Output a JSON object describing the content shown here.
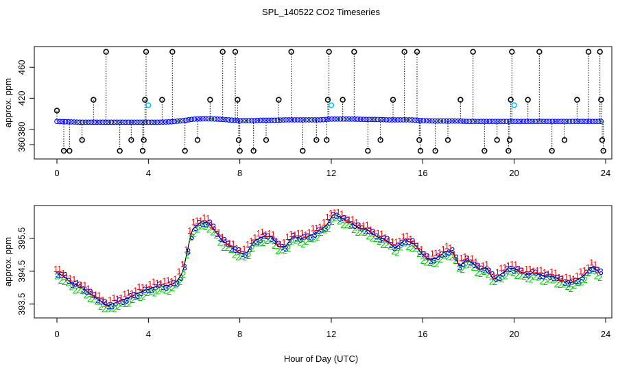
{
  "chart_data": [
    {
      "type": "scatter",
      "title": "SPL_140522  CO2 Timeseries",
      "xlabel": "",
      "ylabel": "approx. ppm",
      "xlim": [
        0,
        24
      ],
      "ylim": [
        345,
        485
      ],
      "x_ticks": [
        0,
        4,
        8,
        12,
        16,
        20,
        24
      ],
      "y_ticks": [
        360,
        380,
        420,
        460
      ],
      "baseline": [
        [
          0,
          390
        ],
        [
          0.5,
          389.5
        ],
        [
          1,
          389
        ],
        [
          1.5,
          389
        ],
        [
          2,
          389
        ],
        [
          2.5,
          389
        ],
        [
          3,
          389
        ],
        [
          3.5,
          389
        ],
        [
          4,
          389
        ],
        [
          4.5,
          389
        ],
        [
          5,
          389.5
        ],
        [
          5.5,
          391
        ],
        [
          6,
          393
        ],
        [
          6.5,
          393.5
        ],
        [
          7,
          393
        ],
        [
          7.5,
          392
        ],
        [
          8,
          391
        ],
        [
          8.5,
          391
        ],
        [
          9,
          391.5
        ],
        [
          9.5,
          391.5
        ],
        [
          10,
          392
        ],
        [
          10.5,
          392
        ],
        [
          11,
          392
        ],
        [
          11.5,
          392
        ],
        [
          12,
          393
        ],
        [
          12.5,
          393
        ],
        [
          13,
          393
        ],
        [
          13.5,
          392.5
        ],
        [
          14,
          392.5
        ],
        [
          14.5,
          392
        ],
        [
          15,
          392
        ],
        [
          15.5,
          392
        ],
        [
          16,
          391
        ],
        [
          16.5,
          390.5
        ],
        [
          17,
          390.5
        ],
        [
          17.5,
          390.5
        ],
        [
          18,
          390
        ],
        [
          18.5,
          390
        ],
        [
          19,
          390
        ],
        [
          19.5,
          390
        ],
        [
          20,
          390
        ],
        [
          20.5,
          390
        ],
        [
          21,
          390
        ],
        [
          21.5,
          390
        ],
        [
          22,
          390
        ],
        [
          22.5,
          390
        ],
        [
          23,
          390
        ],
        [
          23.5,
          390
        ],
        [
          23.8,
          390
        ]
      ],
      "outliers": [
        {
          "x": 0.0,
          "y": 404
        },
        {
          "x": 0.3,
          "y": 352
        },
        {
          "x": 0.55,
          "y": 352
        },
        {
          "x": 1.1,
          "y": 366
        },
        {
          "x": 1.6,
          "y": 418
        },
        {
          "x": 2.15,
          "y": 480
        },
        {
          "x": 2.75,
          "y": 352
        },
        {
          "x": 3.25,
          "y": 366
        },
        {
          "x": 3.75,
          "y": 352
        },
        {
          "x": 3.8,
          "y": 366
        },
        {
          "x": 3.85,
          "y": 418
        },
        {
          "x": 3.9,
          "y": 480
        },
        {
          "x": 4.6,
          "y": 418
        },
        {
          "x": 5.05,
          "y": 480
        },
        {
          "x": 5.6,
          "y": 352
        },
        {
          "x": 6.15,
          "y": 366
        },
        {
          "x": 6.7,
          "y": 418
        },
        {
          "x": 7.25,
          "y": 480
        },
        {
          "x": 7.8,
          "y": 480
        },
        {
          "x": 7.9,
          "y": 418
        },
        {
          "x": 7.95,
          "y": 366
        },
        {
          "x": 8.0,
          "y": 352
        },
        {
          "x": 8.6,
          "y": 352
        },
        {
          "x": 9.15,
          "y": 366
        },
        {
          "x": 9.7,
          "y": 418
        },
        {
          "x": 10.25,
          "y": 480
        },
        {
          "x": 10.75,
          "y": 352
        },
        {
          "x": 11.35,
          "y": 366
        },
        {
          "x": 11.8,
          "y": 366
        },
        {
          "x": 11.85,
          "y": 418
        },
        {
          "x": 11.9,
          "y": 480
        },
        {
          "x": 12.5,
          "y": 418
        },
        {
          "x": 13.0,
          "y": 480
        },
        {
          "x": 13.6,
          "y": 352
        },
        {
          "x": 14.15,
          "y": 366
        },
        {
          "x": 14.7,
          "y": 418
        },
        {
          "x": 15.2,
          "y": 480
        },
        {
          "x": 15.75,
          "y": 480
        },
        {
          "x": 15.85,
          "y": 366
        },
        {
          "x": 15.9,
          "y": 352
        },
        {
          "x": 16.55,
          "y": 352
        },
        {
          "x": 17.1,
          "y": 366
        },
        {
          "x": 17.65,
          "y": 418
        },
        {
          "x": 18.2,
          "y": 480
        },
        {
          "x": 18.7,
          "y": 352
        },
        {
          "x": 19.25,
          "y": 366
        },
        {
          "x": 19.75,
          "y": 352
        },
        {
          "x": 19.8,
          "y": 366
        },
        {
          "x": 19.85,
          "y": 418
        },
        {
          "x": 19.9,
          "y": 480
        },
        {
          "x": 20.6,
          "y": 418
        },
        {
          "x": 21.1,
          "y": 480
        },
        {
          "x": 21.65,
          "y": 352
        },
        {
          "x": 22.2,
          "y": 366
        },
        {
          "x": 22.75,
          "y": 418
        },
        {
          "x": 23.25,
          "y": 480
        },
        {
          "x": 23.75,
          "y": 480
        },
        {
          "x": 23.8,
          "y": 418
        },
        {
          "x": 23.85,
          "y": 366
        },
        {
          "x": 23.9,
          "y": 352
        }
      ],
      "highlights": [
        {
          "x": 4.0,
          "y": 411
        },
        {
          "x": 12.0,
          "y": 411
        },
        {
          "x": 20.0,
          "y": 411
        }
      ],
      "colors": {
        "base": "#0000ff",
        "mid": "#00cc00",
        "outlier": "#000000",
        "highlight": "#00bfff"
      }
    },
    {
      "type": "scatter",
      "title": "",
      "xlabel": "Hour of Day (UTC)",
      "ylabel": "approx. ppm",
      "xlim": [
        0,
        24
      ],
      "ylim": [
        393.1,
        396.5
      ],
      "x_ticks": [
        0,
        4,
        8,
        12,
        16,
        20,
        24
      ],
      "y_ticks": [
        393.5,
        394.5,
        395.5
      ],
      "series": [
        {
          "name": "1",
          "color": "#ff0000",
          "dy": 0.13
        },
        {
          "name": "2",
          "color": "#00cc00",
          "dy": -0.13
        },
        {
          "name": "3",
          "color": "#0000ff",
          "dy": 0.0
        }
      ],
      "curve": [
        [
          0,
          394.45
        ],
        [
          0.3,
          394.35
        ],
        [
          0.6,
          394.15
        ],
        [
          1,
          394.05
        ],
        [
          1.3,
          393.9
        ],
        [
          1.6,
          393.75
        ],
        [
          2,
          393.55
        ],
        [
          2.2,
          393.45
        ],
        [
          2.6,
          393.55
        ],
        [
          3,
          393.65
        ],
        [
          3.3,
          393.75
        ],
        [
          3.6,
          393.85
        ],
        [
          4,
          393.95
        ],
        [
          4.4,
          394.05
        ],
        [
          4.8,
          394.05
        ],
        [
          5.2,
          394.15
        ],
        [
          5.5,
          394.45
        ],
        [
          5.7,
          395.1
        ],
        [
          5.9,
          395.75
        ],
        [
          6.2,
          395.95
        ],
        [
          6.6,
          396.0
        ],
        [
          6.9,
          395.75
        ],
        [
          7.2,
          395.45
        ],
        [
          7.6,
          395.25
        ],
        [
          8,
          395.05
        ],
        [
          8.3,
          395.05
        ],
        [
          8.6,
          395.4
        ],
        [
          9,
          395.55
        ],
        [
          9.4,
          395.55
        ],
        [
          9.7,
          395.25
        ],
        [
          10,
          395.25
        ],
        [
          10.3,
          395.55
        ],
        [
          10.7,
          395.5
        ],
        [
          11,
          395.55
        ],
        [
          11.4,
          395.7
        ],
        [
          11.8,
          395.9
        ],
        [
          12.1,
          396.25
        ],
        [
          12.5,
          396.1
        ],
        [
          12.9,
          395.95
        ],
        [
          13.3,
          395.8
        ],
        [
          13.6,
          395.75
        ],
        [
          14,
          395.55
        ],
        [
          14.4,
          395.45
        ],
        [
          14.8,
          395.2
        ],
        [
          15.2,
          395.45
        ],
        [
          15.6,
          395.35
        ],
        [
          16,
          395.0
        ],
        [
          16.3,
          394.85
        ],
        [
          16.6,
          394.9
        ],
        [
          17,
          395.1
        ],
        [
          17.3,
          395.1
        ],
        [
          17.6,
          394.65
        ],
        [
          17.9,
          394.85
        ],
        [
          18.2,
          394.75
        ],
        [
          18.5,
          394.55
        ],
        [
          18.8,
          394.6
        ],
        [
          19.1,
          394.25
        ],
        [
          19.4,
          394.4
        ],
        [
          19.8,
          394.6
        ],
        [
          20.1,
          394.55
        ],
        [
          20.5,
          394.4
        ],
        [
          20.9,
          394.45
        ],
        [
          21.3,
          394.35
        ],
        [
          21.7,
          394.35
        ],
        [
          22.1,
          394.2
        ],
        [
          22.5,
          394.15
        ],
        [
          22.8,
          394.25
        ],
        [
          23.1,
          394.4
        ],
        [
          23.4,
          394.65
        ],
        [
          23.75,
          394.45
        ]
      ],
      "colors": {
        "line": "#000000"
      }
    }
  ]
}
